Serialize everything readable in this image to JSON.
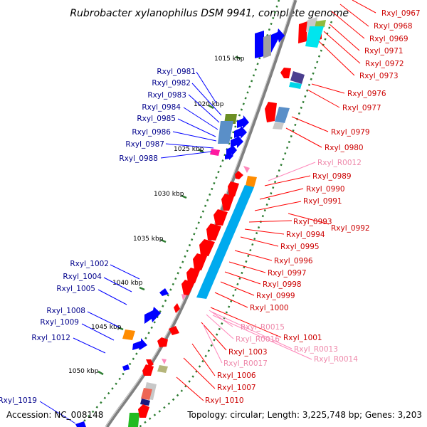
{
  "title": "Rubrobacter xylanophilus DSM 9941, complete genome",
  "footer": {
    "accession": "Accession: NC_008148",
    "topology": "Topology: circular; Length: 3,225,748 bp; Genes: 3,203"
  },
  "colors": {
    "forward_gene": "#0000ff",
    "reverse_gene": "#ff0000",
    "rna": "#ff88bb",
    "backbone": "#808080",
    "tick": "#2e7d32"
  },
  "scale_labels": [
    "1015 kbp",
    "1020 kbp",
    "1025 kbp",
    "1030 kbp",
    "1035 kbp",
    "1040 kbp",
    "1045 kbp",
    "1050 kbp"
  ],
  "left_labels": [
    "Rxyl_0981",
    "Rxyl_0982",
    "Rxyl_0983",
    "Rxyl_0984",
    "Rxyl_0985",
    "Rxyl_0986",
    "Rxyl_0987",
    "Rxyl_0988",
    "Rxyl_1002",
    "Rxyl_1004",
    "Rxyl_1005",
    "Rxyl_1008",
    "Rxyl_1009",
    "Rxyl_1012",
    "Rxyl_1019"
  ],
  "right_labels": [
    "Rxyl_0967",
    "Rxyl_0968",
    "Rxyl_0969",
    "Rxyl_0971",
    "Rxyl_0972",
    "Rxyl_0973",
    "Rxyl_0976",
    "Rxyl_0977",
    "Rxyl_0979",
    "Rxyl_0980",
    "Rxyl_R0012",
    "Rxyl_0989",
    "Rxyl_0990",
    "Rxyl_0991",
    "Rxyl_0993",
    "Rxyl_0992",
    "Rxyl_0994",
    "Rxyl_0995",
    "Rxyl_0996",
    "Rxyl_0997",
    "Rxyl_0998",
    "Rxyl_0999",
    "Rxyl_1000",
    "Rxyl_R0015",
    "Rxyl_1001",
    "Rxyl_R0016",
    "Rxyl_R0013",
    "Rxyl_1003",
    "Rxyl_R0014",
    "Rxyl_R0017",
    "Rxyl_1006",
    "Rxyl_1007",
    "Rxyl_1010"
  ]
}
